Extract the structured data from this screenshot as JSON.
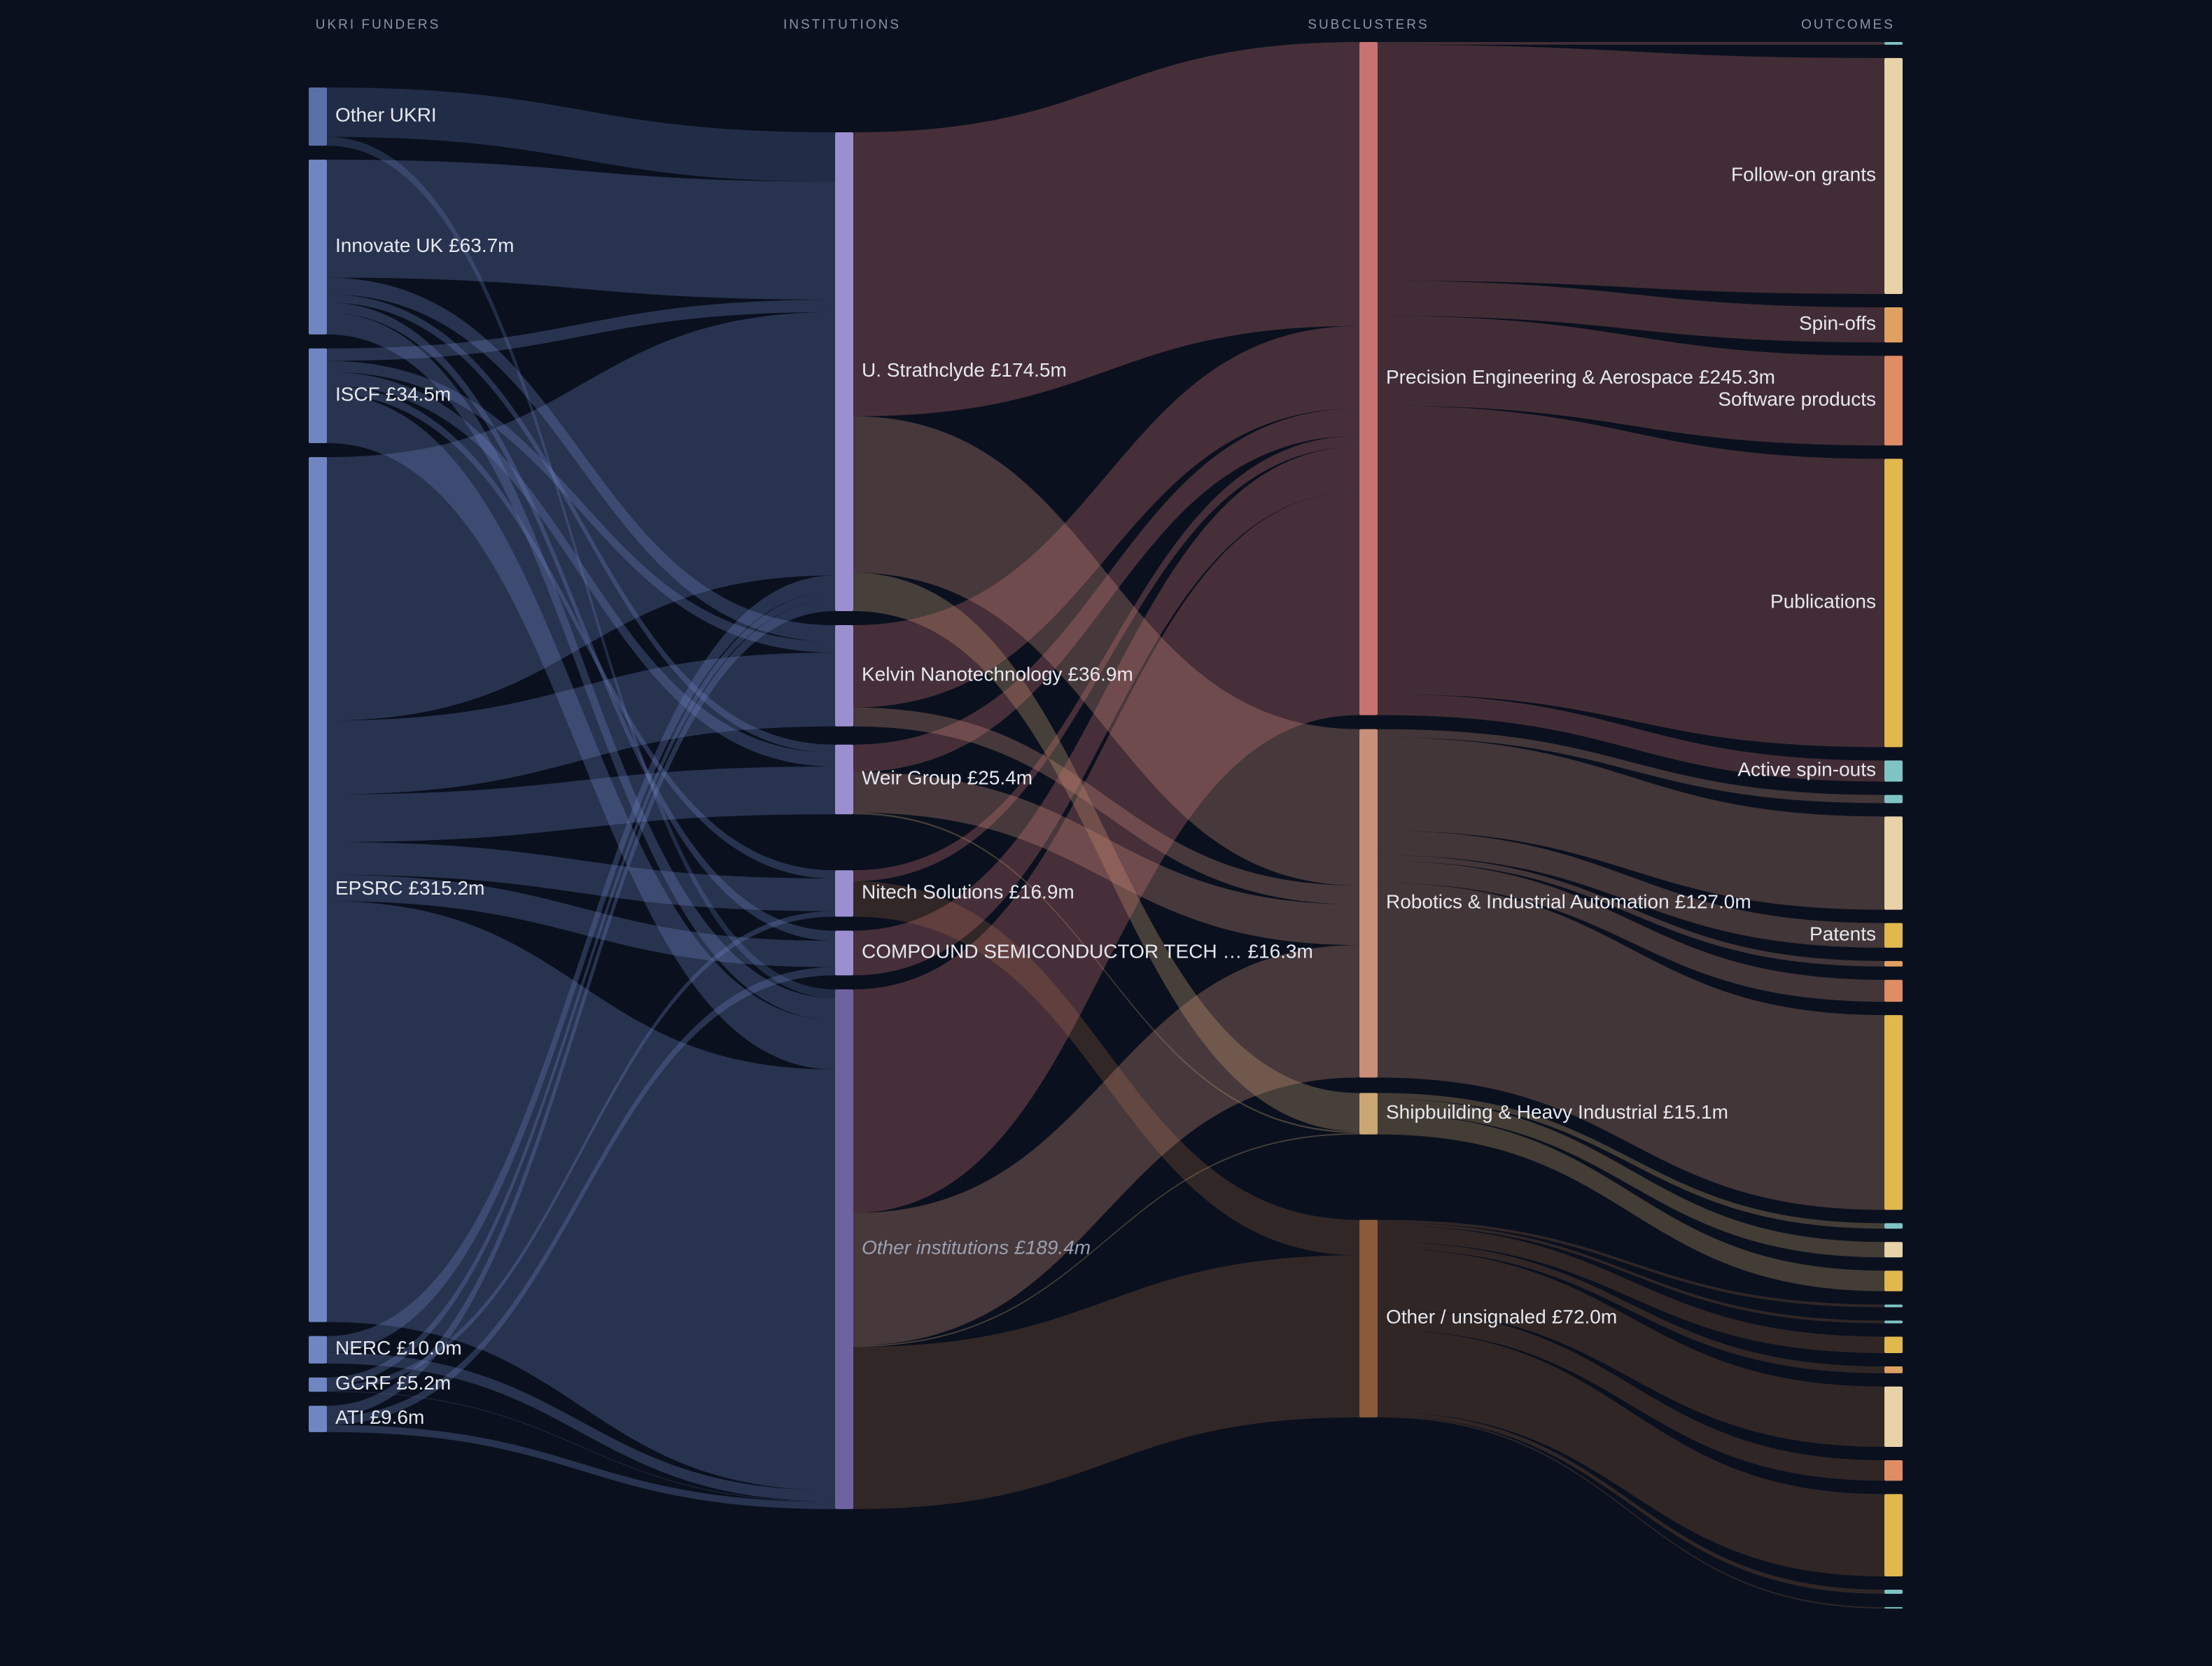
{
  "chart_data": {
    "type": "sankey",
    "column_titles": [
      "UKRI FUNDERS",
      "INSTITUTIONS",
      "SUBCLUSTERS",
      "OUTCOMES"
    ],
    "columns": [
      {
        "flow_color": "source",
        "nodes": [
          {
            "name": "Other UKRI",
            "value": 21.2,
            "color": "#5a6fa8",
            "flows": [
              {
                "to": 0,
                "value": 18.0
              },
              {
                "to": 5,
                "value": 3.2
              }
            ]
          },
          {
            "name": "Innovate UK",
            "value_label": "£63.7m",
            "value": 63.7,
            "color": "#6f86c2",
            "flows": [
              {
                "to": 0,
                "value": 43.0
              },
              {
                "to": 1,
                "value": 6.0
              },
              {
                "to": 2,
                "value": 3.0
              },
              {
                "to": 4,
                "value": 3.7
              },
              {
                "to": 5,
                "value": 8.0
              }
            ]
          },
          {
            "name": "ISCF",
            "value_label": "£34.5m",
            "value": 34.5,
            "color": "#6f86c2",
            "flows": [
              {
                "to": 0,
                "value": 4.5
              },
              {
                "to": 1,
                "value": 4.0
              },
              {
                "to": 2,
                "value": 5.0
              },
              {
                "to": 3,
                "value": 3.0
              },
              {
                "to": 5,
                "value": 18.0
              }
            ]
          },
          {
            "name": "EPSRC",
            "value_label": "£315.2m",
            "value": 315.2,
            "color": "#6f86c2",
            "flows": [
              {
                "to": 0,
                "value": 96.0
              },
              {
                "to": 1,
                "value": 26.9
              },
              {
                "to": 2,
                "value": 17.4
              },
              {
                "to": 3,
                "value": 11.9
              },
              {
                "to": 4,
                "value": 9.6
              },
              {
                "to": 5,
                "value": 153.4
              }
            ]
          },
          {
            "name": "NERC",
            "value_label": "£10.0m",
            "value": 10.0,
            "color": "#6f86c2",
            "flows": [
              {
                "to": 0,
                "value": 6.0
              },
              {
                "to": 5,
                "value": 4.0
              }
            ]
          },
          {
            "name": "GCRF",
            "value_label": "£5.2m",
            "value": 5.2,
            "color": "#6f86c2",
            "flows": [
              {
                "to": 0,
                "value": 3.0
              },
              {
                "to": 3,
                "value": 2.0
              },
              {
                "to": 5,
                "value": 0.2
              }
            ]
          },
          {
            "name": "ATI",
            "value_label": "£9.6m",
            "value": 9.6,
            "color": "#6f86c2",
            "flows": [
              {
                "to": 0,
                "value": 4.0
              },
              {
                "to": 4,
                "value": 3.0
              },
              {
                "to": 5,
                "value": 2.6
              }
            ]
          }
        ]
      },
      {
        "flow_color": "target",
        "nodes": [
          {
            "name": "U. Strathclyde",
            "value_label": "£174.5m",
            "value": 174.5,
            "color": "#9b8fcf",
            "flows": [
              {
                "to": 0,
                "value": 103.5
              },
              {
                "to": 1,
                "value": 57.0
              },
              {
                "to": 2,
                "value": 14.0
              }
            ]
          },
          {
            "name": "Kelvin Nanotechnology",
            "value_label": "£36.9m",
            "value": 36.9,
            "color": "#9b8fcf",
            "flows": [
              {
                "to": 0,
                "value": 30.0
              },
              {
                "to": 1,
                "value": 6.9
              }
            ]
          },
          {
            "name": "Weir Group",
            "value_label": "£25.4m",
            "value": 25.4,
            "color": "#9b8fcf",
            "flows": [
              {
                "to": 0,
                "value": 10.0
              },
              {
                "to": 1,
                "value": 14.8
              },
              {
                "to": 2,
                "value": 0.6
              }
            ]
          },
          {
            "name": "Nitech Solutions",
            "value_label": "£16.9m",
            "value": 16.9,
            "color": "#9b8fcf",
            "flows": [
              {
                "to": 0,
                "value": 4.0
              },
              {
                "to": 3,
                "value": 12.9
              }
            ]
          },
          {
            "name": "COMPOUND SEMICONDUCTOR TECH …",
            "value_label": "£16.3m",
            "value": 16.3,
            "color": "#9b8fcf",
            "flows": [
              {
                "to": 0,
                "value": 16.3
              }
            ]
          },
          {
            "name": "Other institutions",
            "value_label": "£189.4m",
            "value": 189.4,
            "color": "#6e62a0",
            "muted": true,
            "flows": [
              {
                "to": 0,
                "value": 81.5
              },
              {
                "to": 1,
                "value": 48.3
              },
              {
                "to": 2,
                "value": 0.5
              },
              {
                "to": 3,
                "value": 59.1
              }
            ]
          }
        ]
      },
      {
        "flow_color": "source",
        "nodes": [
          {
            "name": "Precision Engineering & Aerospace",
            "value_label": "£245.3m",
            "value": 245.3,
            "color": "#c87272",
            "flows": [
              {
                "to": 0,
                "value": 1.0
              },
              {
                "to": 1,
                "value": 86.0
              },
              {
                "to": 2,
                "value": 12.8
              },
              {
                "to": 3,
                "value": 32.7
              },
              {
                "to": 4,
                "value": 105.1
              },
              {
                "to": 5,
                "value": 7.7
              }
            ]
          },
          {
            "name": "Robotics & Industrial Automation",
            "value_label": "£127.0m",
            "value": 127.0,
            "color": "#c98f78",
            "flows": [
              {
                "to": 6,
                "value": 3.0
              },
              {
                "to": 7,
                "value": 34.0
              },
              {
                "to": 8,
                "value": 9.0
              },
              {
                "to": 9,
                "value": 2.0
              },
              {
                "to": 10,
                "value": 8.0
              },
              {
                "to": 11,
                "value": 71.0
              }
            ]
          },
          {
            "name": "Shipbuilding & Heavy Industrial",
            "value_label": "£15.1m",
            "value": 15.1,
            "color": "#c9a672",
            "flows": [
              {
                "to": 12,
                "value": 2.0
              },
              {
                "to": 13,
                "value": 5.6
              },
              {
                "to": 14,
                "value": 7.5
              }
            ]
          },
          {
            "name": "Other / unsignaled",
            "value_label": "£72.0m",
            "value": 72.0,
            "color": "#8a5a3a",
            "flows": [
              {
                "to": 15,
                "value": 1.0
              },
              {
                "to": 16,
                "value": 1.0
              },
              {
                "to": 17,
                "value": 6.0
              },
              {
                "to": 18,
                "value": 2.5
              },
              {
                "to": 19,
                "value": 22.0
              },
              {
                "to": 20,
                "value": 7.5
              },
              {
                "to": 21,
                "value": 30.0
              },
              {
                "to": 22,
                "value": 1.5
              },
              {
                "to": 23,
                "value": 0.5
              }
            ]
          }
        ]
      },
      {
        "nodes": [
          {
            "name": null,
            "value": 1.0,
            "color": "#7fc4c4"
          },
          {
            "name": "Follow-on grants",
            "value": 86.0,
            "color": "#e8d3a8"
          },
          {
            "name": "Spin-offs",
            "value": 12.8,
            "color": "#e0a060"
          },
          {
            "name": "Software products",
            "value": 32.7,
            "color": "#e08c64"
          },
          {
            "name": "Publications",
            "value": 105.1,
            "color": "#e0b84c"
          },
          {
            "name": "Active spin-outs",
            "value": 7.7,
            "color": "#7fc4c4"
          },
          {
            "name": null,
            "value": 3.0,
            "color": "#7fc4c4"
          },
          {
            "name": null,
            "value": 34.0,
            "color": "#e8d3a8"
          },
          {
            "name": "Patents",
            "value": 9.0,
            "color": "#e0b84c"
          },
          {
            "name": null,
            "value": 2.0,
            "color": "#e0a060"
          },
          {
            "name": null,
            "value": 8.0,
            "color": "#e08c64"
          },
          {
            "name": null,
            "value": 71.0,
            "color": "#e0b84c"
          },
          {
            "name": null,
            "value": 2.0,
            "color": "#7fc4c4"
          },
          {
            "name": null,
            "value": 5.6,
            "color": "#e8d3a8"
          },
          {
            "name": null,
            "value": 7.5,
            "color": "#e0b84c"
          },
          {
            "name": null,
            "value": 1.0,
            "color": "#7fc4c4"
          },
          {
            "name": null,
            "value": 1.0,
            "color": "#7fc4c4"
          },
          {
            "name": null,
            "value": 6.0,
            "color": "#e0b84c"
          },
          {
            "name": null,
            "value": 2.5,
            "color": "#e0a060"
          },
          {
            "name": null,
            "value": 22.0,
            "color": "#e8d3a8"
          },
          {
            "name": null,
            "value": 7.5,
            "color": "#e08c64"
          },
          {
            "name": null,
            "value": 30.0,
            "color": "#e0b84c"
          },
          {
            "name": null,
            "value": 1.5,
            "color": "#7fc4c4"
          },
          {
            "name": null,
            "value": 0.5,
            "color": "#7fc4c4"
          }
        ]
      }
    ]
  }
}
